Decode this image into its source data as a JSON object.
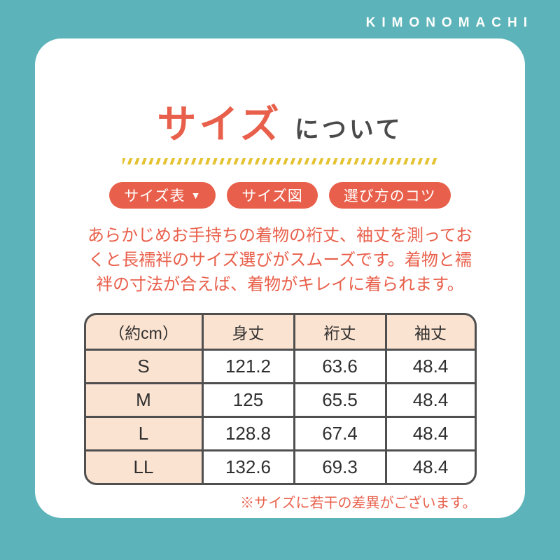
{
  "brand": "KIMONOMACHI",
  "title": {
    "main": "サイズ",
    "sub": "について"
  },
  "buttons": [
    {
      "label": "サイズ表",
      "caret": "▼"
    },
    {
      "label": "サイズ図"
    },
    {
      "label": "選び方のコツ"
    }
  ],
  "description": {
    "lines": [
      "あらかじめお手持ちの着物の裄丈、袖丈を測ってお",
      "くと長襦袢のサイズ選びがスムーズです。着物と襦",
      "袢の寸法が合えば、着物がキレイに着られます。"
    ]
  },
  "size_table": {
    "headers": [
      "（約cm）",
      "身丈",
      "裄丈",
      "袖丈"
    ],
    "rows": [
      {
        "size": "S",
        "values": [
          "121.2",
          "63.6",
          "48.4"
        ]
      },
      {
        "size": "M",
        "values": [
          "125",
          "65.5",
          "48.4"
        ]
      },
      {
        "size": "L",
        "values": [
          "128.8",
          "67.4",
          "48.4"
        ]
      },
      {
        "size": "LL",
        "values": [
          "132.6",
          "69.3",
          "48.4"
        ]
      }
    ]
  },
  "note": "※サイズに若干の差異がございます。",
  "colors": {
    "background_teal": "#5cb4ba",
    "accent_coral": "#e8604b",
    "table_header_peach": "#fbe3d1",
    "divider_yellow": "#e5c230",
    "table_border_gray": "#4f4f4f"
  }
}
